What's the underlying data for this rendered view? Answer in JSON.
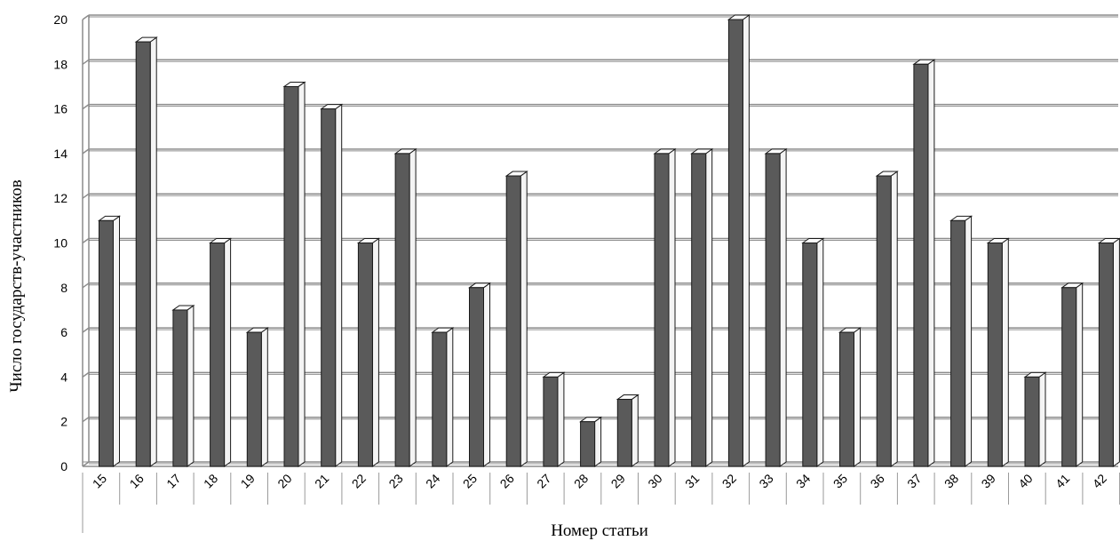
{
  "chart_data": {
    "type": "bar",
    "title": "",
    "xlabel": "Номер статьи",
    "ylabel": "Число государств-участников",
    "categories": [
      "15",
      "16",
      "17",
      "18",
      "19",
      "20",
      "21",
      "22",
      "23",
      "24",
      "25",
      "26",
      "27",
      "28",
      "29",
      "30",
      "31",
      "32",
      "33",
      "34",
      "35",
      "36",
      "37",
      "38",
      "39",
      "40",
      "41",
      "42"
    ],
    "values": [
      11,
      19,
      7,
      10,
      6,
      17,
      16,
      10,
      14,
      6,
      8,
      13,
      4,
      2,
      3,
      14,
      14,
      20,
      14,
      10,
      6,
      13,
      18,
      11,
      10,
      4,
      8,
      10
    ],
    "ylim": [
      0,
      20
    ],
    "yticks": [
      "0",
      "2",
      "4",
      "6",
      "8",
      "10",
      "12",
      "14",
      "16",
      "18",
      "20"
    ],
    "grid": true,
    "legend": "none",
    "style": "3d-column",
    "colors": {
      "bar_front": "#5a5a5a",
      "bar_side": "#f4f4f4",
      "bar_top": "#fafafa",
      "bar_outline": "#1a1a1a",
      "gridline": "#8c8c8c",
      "gridline_shadow": "#5f5f5f"
    }
  }
}
